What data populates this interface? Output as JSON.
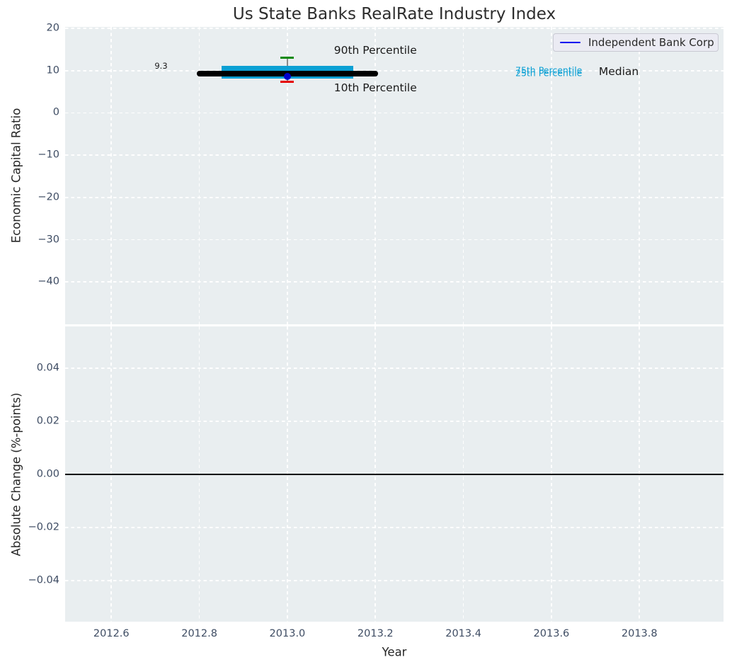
{
  "title": "Us State Banks RealRate Industry Index",
  "legend": {
    "label": "Independent Bank Corp",
    "line_color": "#0000f0"
  },
  "colors": {
    "axes_background": "#e9eef0",
    "grid": "#ffffff",
    "tick_labels": "#3e4c63",
    "percentile_band": "#0ba0d4",
    "median": "#000000",
    "company_point": "#0000cd",
    "p90_cap": "#0e8a0e",
    "p10_cap": "#e50000"
  },
  "chart_data": [
    {
      "type": "line",
      "panel": "top",
      "title": "Us State Banks RealRate Industry Index",
      "ylabel": "Economic Capital Ratio",
      "xlim": [
        2012.495,
        2013.991
      ],
      "ylim": [
        -50,
        20.35
      ],
      "grid": "white-dashed",
      "legend_position": "upper right",
      "yticks": [
        {
          "v": 20,
          "label": "20"
        },
        {
          "v": 10,
          "label": "10"
        },
        {
          "v": 0,
          "label": "0"
        },
        {
          "v": -10,
          "label": "−10"
        },
        {
          "v": -20,
          "label": "−20"
        },
        {
          "v": -30,
          "label": "−30"
        },
        {
          "v": -40,
          "label": "−40"
        }
      ],
      "xticks": [
        {
          "v": 2012.6
        },
        {
          "v": 2012.8
        },
        {
          "v": 2013.0
        },
        {
          "v": 2013.2
        },
        {
          "v": 2013.4
        },
        {
          "v": 2013.6
        },
        {
          "v": 2013.8
        }
      ],
      "xticklabels_visible": false,
      "series": [
        {
          "name": "75th Percentile",
          "color": "#0ba0d4",
          "x": [
            2012.85,
            2013.15
          ],
          "values": [
            10.4,
            10.4
          ],
          "linewidth": 9,
          "round": false
        },
        {
          "name": "25th Percentile",
          "color": "#0ba0d4",
          "x": [
            2012.85,
            2013.15
          ],
          "values": [
            8.8,
            8.8
          ],
          "linewidth": 9,
          "round": false
        },
        {
          "name": "Median",
          "color": "#000000",
          "x": [
            2012.8,
            2013.2
          ],
          "values": [
            9.3,
            9.3
          ],
          "linewidth": 7.5,
          "round": true
        }
      ],
      "errorbar": {
        "x": 2013.0,
        "high": 13.1,
        "low": 7.3,
        "line_color": "#8a8a8a",
        "cap_high_color": "#0e8a0e",
        "cap_low_color": "#e50000",
        "cap_width": 19,
        "cap_thickness": 3
      },
      "point": {
        "name": "Independent Bank Corp",
        "x": 2013.0,
        "y": 8.6,
        "color": "#0000cd",
        "size": 10
      },
      "annotations": [
        {
          "text": "9.3",
          "x": 2012.713,
          "y": 11.1,
          "color": "#1a1a1a",
          "size": 11.5
        },
        {
          "text": "90th Percentile",
          "x": 2013.2,
          "y": 14.8,
          "color": "#1a1a1a",
          "size": 15.5
        },
        {
          "text": "10th Percentile",
          "x": 2013.2,
          "y": 5.9,
          "color": "#1a1a1a",
          "size": 15.5
        },
        {
          "text": "75th Percentile",
          "x": 2013.594,
          "y": 10.1,
          "color": "#0ba0d4",
          "size": 12.5
        },
        {
          "text": "25th Percentile",
          "x": 2013.594,
          "y": 9.5,
          "color": "#0ba0d4",
          "size": 12.5
        },
        {
          "text": "Median",
          "x": 2013.753,
          "y": 9.8,
          "color": "#1a1a1a",
          "size": 15.5
        }
      ]
    },
    {
      "type": "line",
      "panel": "bottom",
      "ylabel": "Absolute Change (%-points)",
      "xlabel": "Year",
      "xlim": [
        2012.495,
        2013.991
      ],
      "ylim": [
        -0.0555,
        0.0557
      ],
      "grid": "white-dashed",
      "yticks": [
        {
          "v": 0.04,
          "label": "0.04"
        },
        {
          "v": 0.02,
          "label": "0.02"
        },
        {
          "v": 0,
          "label": "0.00"
        },
        {
          "v": -0.02,
          "label": "−0.02"
        },
        {
          "v": -0.04,
          "label": "−0.04"
        }
      ],
      "xticks": [
        {
          "v": 2012.6,
          "label": "2012.6"
        },
        {
          "v": 2012.8,
          "label": "2012.8"
        },
        {
          "v": 2013.0,
          "label": "2013.0"
        },
        {
          "v": 2013.2,
          "label": "2013.2"
        },
        {
          "v": 2013.4,
          "label": "2013.4"
        },
        {
          "v": 2013.6,
          "label": "2013.6"
        },
        {
          "v": 2013.8,
          "label": "2013.8"
        }
      ],
      "xticklabels_visible": true,
      "series": [],
      "zero_line": {
        "y": 0,
        "color": "#000000",
        "linewidth": 1.5
      }
    }
  ]
}
